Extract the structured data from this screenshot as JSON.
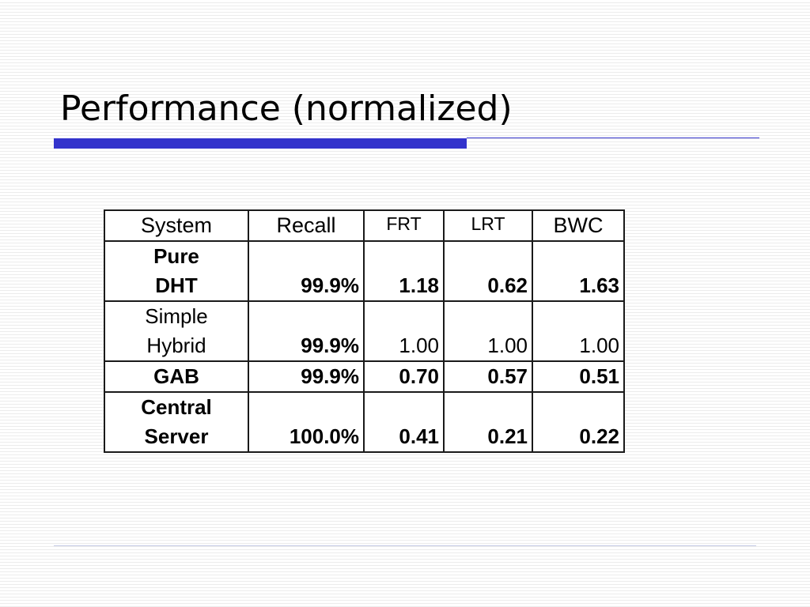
{
  "slide": {
    "title": "Performance (normalized)"
  },
  "table": {
    "headers": [
      "System",
      "Recall",
      "FRT",
      "LRT",
      "BWC"
    ],
    "rows": [
      {
        "system_line1": "Pure",
        "system_line2": "DHT",
        "recall": "99.9%",
        "frt": "1.18",
        "lrt": "0.62",
        "bwc": "1.63"
      },
      {
        "system_line1": "Simple",
        "system_line2": "Hybrid",
        "recall": "99.9%",
        "frt": "1.00",
        "lrt": "1.00",
        "bwc": "1.00"
      },
      {
        "system": "GAB",
        "recall": "99.9%",
        "frt": "0.70",
        "lrt": "0.57",
        "bwc": "0.51"
      },
      {
        "system_line1": "Central",
        "system_line2": "Server",
        "recall": "100.0%",
        "frt": "0.41",
        "lrt": "0.21",
        "bwc": "0.22"
      }
    ]
  },
  "colors": {
    "title_bar": "#3333cc",
    "background_stripe": "#ececec"
  }
}
